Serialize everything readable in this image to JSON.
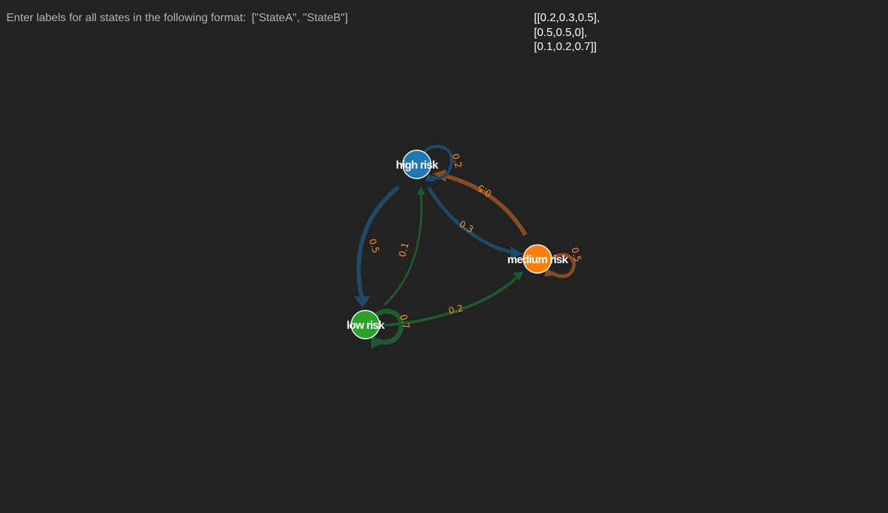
{
  "prompt": {
    "text": "Enter labels for all states in the following format:",
    "format": "[\"StateA\", \"StateB\"]"
  },
  "matrix": {
    "rows": [
      "[[0.2,0.3,0.5],",
      "[0.5,0.5,0],",
      "[0.1,0.2,0.7]]"
    ]
  },
  "colors": {
    "background": "#222222",
    "high_risk": "#1f77b4",
    "medium_risk": "#ff7f0e",
    "low_risk": "#2ca02c",
    "edge_label": "#ff8c2a"
  },
  "states": [
    {
      "id": "high",
      "label": "high risk",
      "color": "#1f77b4"
    },
    {
      "id": "medium",
      "label": "medium risk",
      "color": "#ff7f0e"
    },
    {
      "id": "low",
      "label": "low risk",
      "color": "#2ca02c"
    }
  ],
  "transitions": [
    {
      "from": "high",
      "to": "high",
      "label": "0.2",
      "color": "#1e4a68"
    },
    {
      "from": "high",
      "to": "medium",
      "label": "0.3",
      "color": "#1e4a68"
    },
    {
      "from": "high",
      "to": "low",
      "label": "0.5",
      "color": "#1e4a68"
    },
    {
      "from": "medium",
      "to": "high",
      "label": "0.5",
      "color": "#8a4a23"
    },
    {
      "from": "medium",
      "to": "medium",
      "label": "0.5",
      "color": "#8a4a23"
    },
    {
      "from": "low",
      "to": "high",
      "label": "0.1",
      "color": "#1f5a2f"
    },
    {
      "from": "low",
      "to": "medium",
      "label": "0.2",
      "color": "#1f5a2f"
    },
    {
      "from": "low",
      "to": "low",
      "label": "0.7",
      "color": "#1f5a2f"
    }
  ]
}
